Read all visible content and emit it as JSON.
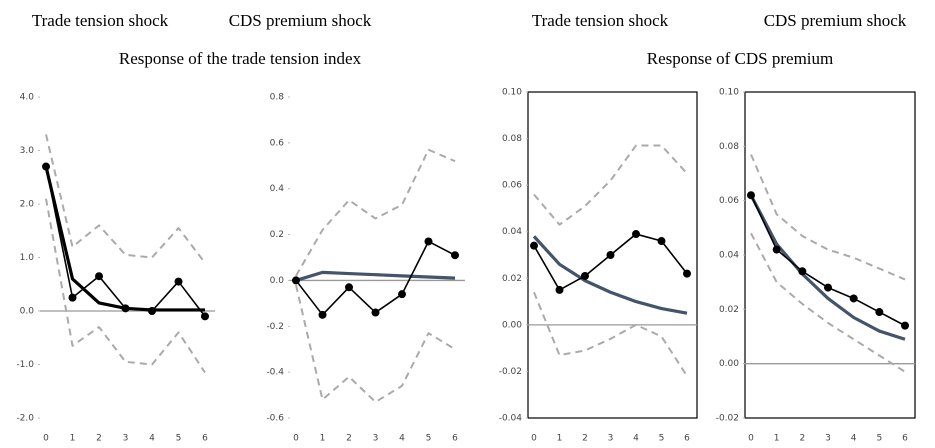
{
  "headings": [
    "Response of the trade tension index",
    "Response of CDS premium"
  ],
  "chart_data": [
    {
      "type": "line",
      "title": "Trade tension shock",
      "frame": false,
      "zero_line": true,
      "categories": [
        "0",
        "1",
        "2",
        "3",
        "4",
        "5",
        "6"
      ],
      "ylim": [
        -2,
        4
      ],
      "yticks": [
        {
          "value": -2,
          "label": "-2.0"
        },
        {
          "value": -1,
          "label": "-1.0"
        },
        {
          "value": 0,
          "label": "0.0"
        },
        {
          "value": 1,
          "label": "1.0"
        },
        {
          "value": 2,
          "label": "2.0"
        },
        {
          "value": 3,
          "label": "3.0"
        },
        {
          "value": 4,
          "label": "4.0"
        }
      ],
      "series": [
        {
          "color": "#aaaaaa",
          "style": "dashed",
          "values": [
            3.3,
            1.2,
            1.6,
            1.05,
            1.0,
            1.55,
            0.9
          ]
        },
        {
          "color": "#aaaaaa",
          "style": "dashed",
          "values": [
            2.1,
            -0.65,
            -0.3,
            -0.95,
            -1.0,
            -0.4,
            -1.15
          ]
        },
        {
          "color": "#000000",
          "style": "thick",
          "values": [
            2.7,
            0.6,
            0.15,
            0.05,
            0.02,
            0.02,
            0.02
          ]
        },
        {
          "color": "#000000",
          "style": "markers",
          "values": [
            2.7,
            0.25,
            0.65,
            0.05,
            0.0,
            0.55,
            -0.1
          ]
        }
      ]
    },
    {
      "type": "line",
      "title": "CDS premium shock",
      "frame": false,
      "zero_line": true,
      "categories": [
        "0",
        "1",
        "2",
        "3",
        "4",
        "5",
        "6"
      ],
      "ylim": [
        -0.6,
        0.8
      ],
      "yticks": [
        -0.6,
        -0.4,
        -0.2,
        {
          "value": 0,
          "label": "0.0"
        },
        0.2,
        0.4,
        0.6,
        0.8
      ],
      "series": [
        {
          "color": "#aaaaaa",
          "style": "dashed",
          "values": [
            0.02,
            0.22,
            0.35,
            0.27,
            0.33,
            0.57,
            0.52
          ]
        },
        {
          "color": "#aaaaaa",
          "style": "dashed",
          "values": [
            -0.02,
            -0.52,
            -0.42,
            -0.53,
            -0.46,
            -0.23,
            -0.3
          ]
        },
        {
          "color": "#44546a",
          "style": "thick",
          "values": [
            0,
            0.035,
            0.03,
            0.025,
            0.02,
            0.015,
            0.01
          ]
        },
        {
          "color": "#000000",
          "style": "markers",
          "values": [
            0,
            -0.15,
            -0.03,
            -0.14,
            -0.06,
            0.17,
            0.11
          ]
        }
      ]
    },
    {
      "type": "line",
      "title": "Trade tension shock",
      "frame": true,
      "zero_line": true,
      "categories": [
        "0",
        "1",
        "2",
        "3",
        "4",
        "5",
        "6"
      ],
      "ylim": [
        -0.04,
        0.1
      ],
      "yticks": [
        {
          "value": -0.04,
          "label": "-0.04"
        },
        {
          "value": -0.02,
          "label": "-0.02"
        },
        {
          "value": 0,
          "label": "0.00"
        },
        {
          "value": 0.02,
          "label": "0.02"
        },
        {
          "value": 0.04,
          "label": "0.04"
        },
        {
          "value": 0.06,
          "label": "0.06"
        },
        {
          "value": 0.08,
          "label": "0.08"
        },
        {
          "value": 0.1,
          "label": "0.10"
        }
      ],
      "series": [
        {
          "color": "#aaaaaa",
          "style": "dashed",
          "values": [
            0.056,
            0.043,
            0.051,
            0.062,
            0.077,
            0.077,
            0.065
          ]
        },
        {
          "color": "#aaaaaa",
          "style": "dashed",
          "values": [
            0.014,
            -0.013,
            -0.011,
            -0.006,
            0.0,
            -0.005,
            -0.022
          ]
        },
        {
          "color": "#44546a",
          "style": "thick",
          "values": [
            0.038,
            0.026,
            0.019,
            0.014,
            0.01,
            0.007,
            0.005
          ]
        },
        {
          "color": "#000000",
          "style": "markers",
          "values": [
            0.034,
            0.015,
            0.021,
            0.03,
            0.039,
            0.036,
            0.022
          ]
        }
      ]
    },
    {
      "type": "line",
      "title": "CDS premium shock",
      "frame": true,
      "zero_line": true,
      "categories": [
        "0",
        "1",
        "2",
        "3",
        "4",
        "5",
        "6"
      ],
      "ylim": [
        -0.02,
        0.1
      ],
      "yticks": [
        {
          "value": -0.02,
          "label": "-0.02"
        },
        {
          "value": 0,
          "label": "0.00"
        },
        {
          "value": 0.02,
          "label": "0.02"
        },
        {
          "value": 0.04,
          "label": "0.04"
        },
        {
          "value": 0.06,
          "label": "0.06"
        },
        {
          "value": 0.08,
          "label": "0.08"
        },
        {
          "value": 0.1,
          "label": "0.10"
        }
      ],
      "series": [
        {
          "color": "#aaaaaa",
          "style": "dashed",
          "values": [
            0.077,
            0.055,
            0.047,
            0.042,
            0.039,
            0.035,
            0.031
          ]
        },
        {
          "color": "#aaaaaa",
          "style": "dashed",
          "values": [
            0.048,
            0.03,
            0.022,
            0.015,
            0.009,
            0.003,
            -0.003
          ]
        },
        {
          "color": "#44546a",
          "style": "thick",
          "values": [
            0.062,
            0.044,
            0.033,
            0.024,
            0.017,
            0.012,
            0.009
          ]
        },
        {
          "color": "#000000",
          "style": "markers",
          "values": [
            0.062,
            0.042,
            0.034,
            0.028,
            0.024,
            0.019,
            0.014
          ]
        }
      ]
    }
  ]
}
